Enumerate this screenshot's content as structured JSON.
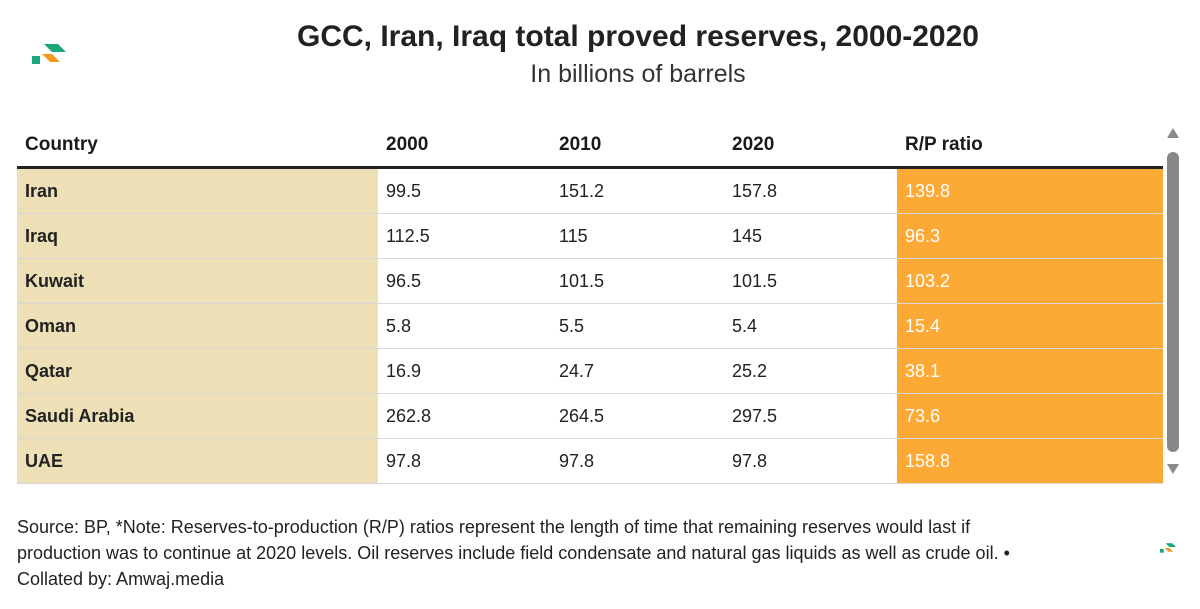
{
  "chart_data": {
    "type": "table",
    "title": "GCC, Iran, Iraq total proved reserves, 2000-2020",
    "subtitle": "In billions of barrels",
    "columns": [
      "Country",
      "2000",
      "2010",
      "2020",
      "R/P ratio"
    ],
    "rows": [
      [
        "Iran",
        "99.5",
        "151.2",
        "157.8",
        "139.8"
      ],
      [
        "Iraq",
        "112.5",
        "115",
        "145",
        "96.3"
      ],
      [
        "Kuwait",
        "96.5",
        "101.5",
        "101.5",
        "103.2"
      ],
      [
        "Oman",
        "5.8",
        "5.5",
        "5.4",
        "15.4"
      ],
      [
        "Qatar",
        "16.9",
        "24.7",
        "25.2",
        "38.1"
      ],
      [
        "Saudi Arabia",
        "262.8",
        "264.5",
        "297.5",
        "73.6"
      ],
      [
        "UAE",
        "97.8",
        "97.8",
        "97.8",
        "158.8"
      ]
    ],
    "colors": {
      "country_column": "#ede0b6",
      "rp_column": "#fda936",
      "logo_green": "#1aa87a",
      "logo_orange": "#f39a1e"
    }
  },
  "footer": {
    "line1": "Source: BP, *Note: Reserves-to-production (R/P) ratios represent the length of time that remaining reserves would last if",
    "line2": "production was to continue at 2020 levels. Oil reserves include field condensate and natural gas liquids as well as crude oil. •",
    "line3": "Collated by: Amwaj.media"
  }
}
